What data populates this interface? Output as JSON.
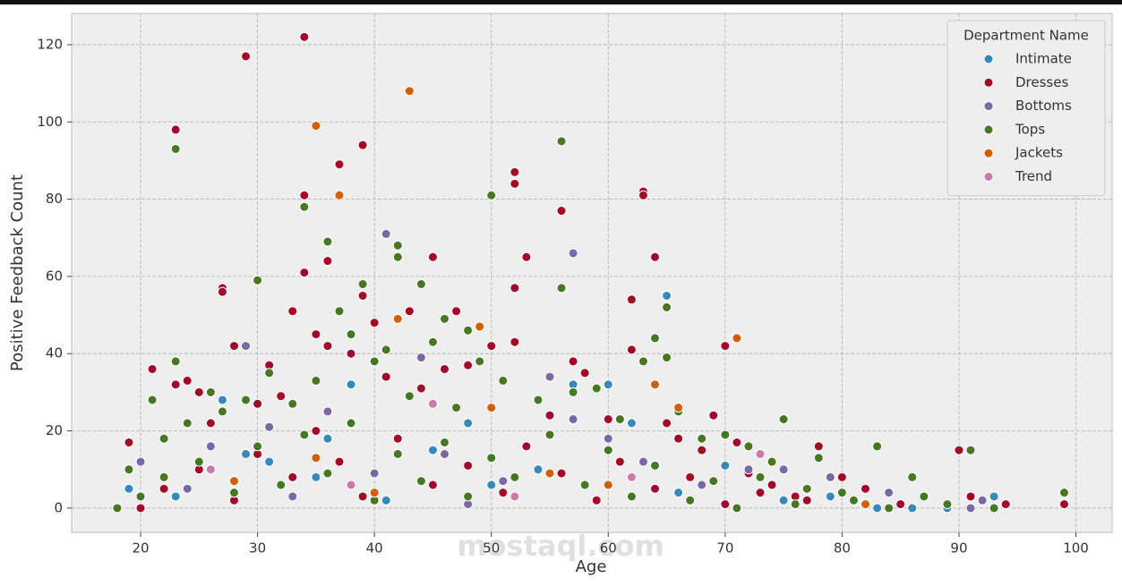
{
  "chart_data": {
    "type": "scatter",
    "x_label": "Age",
    "y_label": "Positive Feedback Count",
    "legend_title": "Department Name",
    "legend": "upper right",
    "grid": true,
    "watermark": "mostaql.com",
    "xlim": [
      14.1,
      103.1
    ],
    "ylim": [
      -6.3,
      128.1
    ],
    "xticks": [
      20,
      30,
      40,
      50,
      60,
      70,
      80,
      90,
      100
    ],
    "yticks": [
      0,
      20,
      40,
      60,
      80,
      100,
      120
    ],
    "series": [
      {
        "name": "Intimate",
        "color": "#348abd",
        "x": [
          65,
          60,
          57,
          38,
          27,
          48,
          62,
          70,
          19,
          23,
          31,
          35,
          41,
          45,
          50,
          54,
          66,
          75,
          79,
          83,
          86,
          93,
          89,
          29,
          36
        ],
        "values": [
          55,
          32,
          32,
          32,
          28,
          22,
          22,
          11,
          5,
          3,
          12,
          8,
          2,
          15,
          6,
          10,
          4,
          2,
          3,
          0,
          0,
          3,
          0,
          14,
          18
        ]
      },
      {
        "name": "Dresses",
        "color": "#a60628",
        "x": [
          34,
          29,
          23,
          39,
          37,
          52,
          52,
          63,
          63,
          34,
          56,
          64,
          53,
          45,
          34,
          36,
          62,
          27,
          27,
          39,
          52,
          43,
          47,
          33,
          70,
          28,
          52,
          36,
          21,
          31,
          57,
          58,
          69,
          78,
          80,
          90,
          91,
          94,
          99,
          19,
          23,
          24,
          25,
          26,
          30,
          32,
          35,
          38,
          40,
          41,
          44,
          46,
          48,
          50,
          54,
          55,
          60,
          62,
          65,
          66,
          68,
          71,
          72,
          74,
          76,
          20,
          22,
          25,
          28,
          30,
          33,
          35,
          37,
          39,
          42,
          45,
          48,
          51,
          53,
          56,
          59,
          61,
          64,
          67,
          70,
          73,
          77,
          82,
          85
        ],
        "values": [
          122,
          117,
          98,
          94,
          89,
          87,
          84,
          82,
          81,
          81,
          77,
          65,
          65,
          65,
          61,
          64,
          54,
          57,
          56,
          55,
          57,
          51,
          51,
          51,
          42,
          42,
          43,
          42,
          36,
          37,
          38,
          35,
          24,
          16,
          8,
          15,
          3,
          1,
          1,
          17,
          32,
          33,
          30,
          22,
          27,
          29,
          45,
          40,
          48,
          34,
          31,
          36,
          37,
          42,
          28,
          24,
          23,
          41,
          22,
          18,
          15,
          17,
          9,
          6,
          3,
          0,
          5,
          10,
          2,
          14,
          8,
          20,
          12,
          3,
          18,
          6,
          11,
          4,
          16,
          9,
          2,
          12,
          5,
          8,
          1,
          4,
          2,
          5,
          1
        ]
      },
      {
        "name": "Bottoms",
        "color": "#7a68a6",
        "x": [
          41,
          57,
          29,
          44,
          55,
          60,
          20,
          26,
          31,
          36,
          40,
          46,
          51,
          57,
          63,
          68,
          72,
          75,
          79,
          84,
          92,
          91,
          24,
          33,
          48
        ],
        "values": [
          71,
          66,
          42,
          39,
          34,
          18,
          12,
          16,
          21,
          25,
          9,
          14,
          7,
          23,
          12,
          6,
          10,
          10,
          8,
          4,
          2,
          0,
          5,
          3,
          1
        ]
      },
      {
        "name": "Tops",
        "color": "#467821",
        "x": [
          23,
          56,
          50,
          34,
          36,
          42,
          42,
          30,
          44,
          56,
          39,
          65,
          46,
          48,
          37,
          38,
          23,
          41,
          45,
          64,
          65,
          75,
          83,
          86,
          91,
          99,
          89,
          93,
          21,
          22,
          24,
          26,
          27,
          29,
          31,
          33,
          35,
          40,
          43,
          47,
          49,
          51,
          54,
          57,
          59,
          61,
          63,
          66,
          68,
          70,
          72,
          74,
          77,
          78,
          80,
          18,
          19,
          20,
          22,
          25,
          28,
          30,
          32,
          34,
          36,
          38,
          40,
          42,
          44,
          46,
          48,
          50,
          52,
          55,
          58,
          60,
          62,
          64,
          67,
          69,
          71,
          73,
          76,
          81,
          84,
          87
        ],
        "values": [
          93,
          95,
          81,
          78,
          69,
          68,
          65,
          59,
          58,
          57,
          58,
          52,
          49,
          46,
          51,
          45,
          38,
          41,
          43,
          44,
          39,
          23,
          16,
          8,
          15,
          4,
          1,
          0,
          28,
          18,
          22,
          30,
          25,
          28,
          35,
          27,
          33,
          38,
          29,
          26,
          38,
          33,
          28,
          30,
          31,
          23,
          38,
          25,
          18,
          19,
          16,
          12,
          5,
          13,
          4,
          0,
          10,
          3,
          8,
          12,
          4,
          16,
          6,
          19,
          9,
          22,
          2,
          14,
          7,
          17,
          3,
          13,
          8,
          19,
          6,
          15,
          3,
          11,
          2,
          7,
          0,
          8,
          1,
          2,
          0,
          3
        ]
      },
      {
        "name": "Jackets",
        "color": "#d55e00",
        "x": [
          43,
          35,
          37,
          71,
          42,
          49,
          50,
          64,
          66,
          35,
          40,
          55,
          60,
          82,
          28
        ],
        "values": [
          108,
          99,
          81,
          44,
          49,
          47,
          26,
          32,
          26,
          13,
          4,
          9,
          6,
          1,
          7
        ]
      },
      {
        "name": "Trend",
        "color": "#cc79a7",
        "x": [
          73,
          45,
          26,
          38,
          52,
          62
        ],
        "values": [
          14,
          27,
          10,
          6,
          3,
          8
        ]
      }
    ]
  }
}
